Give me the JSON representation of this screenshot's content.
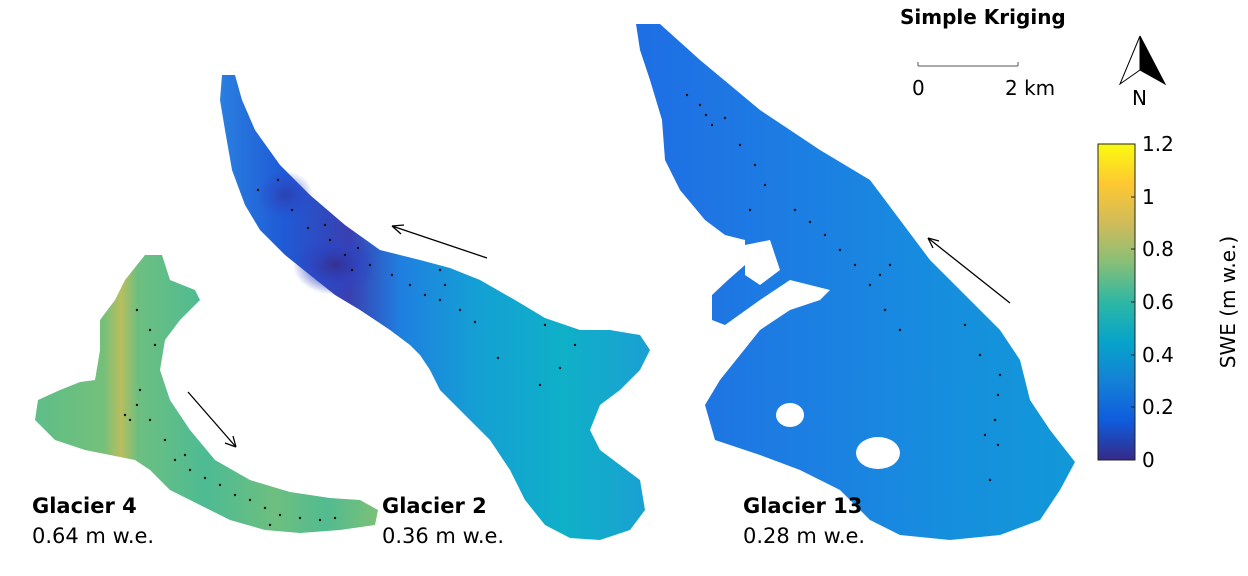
{
  "title": "Simple Kriging",
  "scale_bar": {
    "start_label": "0",
    "end_label": "2 km"
  },
  "north_arrow": {
    "label": "N"
  },
  "colorbar": {
    "label": "SWE (m w.e.)",
    "ticks": [
      "0",
      "0.2",
      "0.4",
      "0.6",
      "0.8",
      "1",
      "1.2"
    ],
    "min": 0,
    "max": 1.2,
    "colormap": "parula",
    "stops": [
      "#352a87",
      "#0f5cdd",
      "#1481d6",
      "#06a4ca",
      "#2eb7a4",
      "#87bf77",
      "#d1bb59",
      "#fec832",
      "#f9fb0e"
    ]
  },
  "glaciers": [
    {
      "name": "Glacier 4",
      "value_label": "0.64 m w.e.",
      "mean_swe": 0.64,
      "color": "#5dbd85"
    },
    {
      "name": "Glacier 2",
      "value_label": "0.36 m w.e.",
      "mean_swe": 0.36,
      "color": "#1a95d8"
    },
    {
      "name": "Glacier 13",
      "value_label": "0.28 m w.e.",
      "mean_swe": 0.28,
      "color": "#1f7fe0"
    }
  ]
}
